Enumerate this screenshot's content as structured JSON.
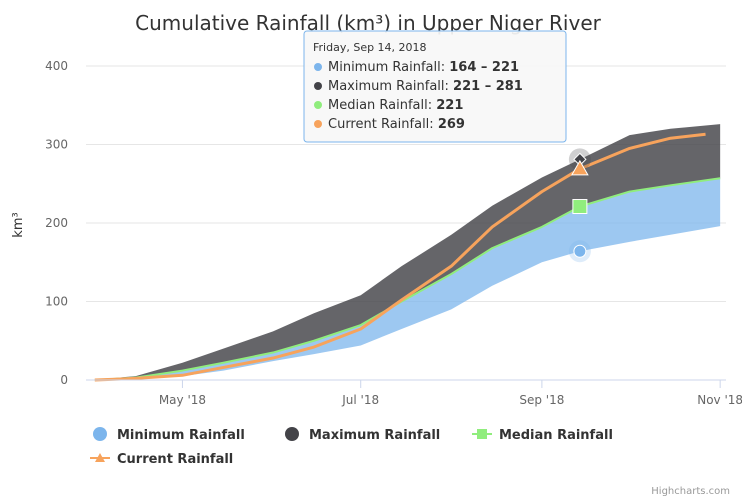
{
  "chart_data": {
    "type": "area",
    "title": "Cumulative Rainfall (km³) in Upper Niger River",
    "ylabel": "km³",
    "ylim": [
      0,
      400
    ],
    "yticks": [
      "0",
      "100",
      "200",
      "300",
      "400"
    ],
    "xlim": [
      "2018-03-29",
      "2018-11-03"
    ],
    "xticks": [
      {
        "date": "2018-05-01",
        "label": "May '18"
      },
      {
        "date": "2018-07-01",
        "label": "Jul '18"
      },
      {
        "date": "2018-09-01",
        "label": "Sep '18"
      },
      {
        "date": "2018-11-01",
        "label": "Nov '18"
      }
    ],
    "grid": true,
    "legend": "bottom-left",
    "series": [
      {
        "name": "Minimum Rainfall",
        "kind": "range",
        "color": "#7cb5ec",
        "x": [
          "2018-04-01",
          "2018-04-15",
          "2018-05-01",
          "2018-05-15",
          "2018-06-01",
          "2018-06-15",
          "2018-07-01",
          "2018-07-15",
          "2018-08-01",
          "2018-08-15",
          "2018-09-01",
          "2018-09-14",
          "2018-10-01",
          "2018-10-15",
          "2018-11-01"
        ],
        "low": [
          0,
          2,
          5,
          12,
          24,
          33,
          44,
          65,
          90,
          120,
          150,
          164,
          176,
          185,
          196
        ],
        "high": [
          0,
          3,
          12,
          22,
          35,
          50,
          70,
          100,
          135,
          168,
          195,
          221,
          240,
          248,
          257
        ]
      },
      {
        "name": "Maximum Rainfall",
        "kind": "range",
        "color": "#434348",
        "x": [
          "2018-04-01",
          "2018-04-15",
          "2018-05-01",
          "2018-05-15",
          "2018-06-01",
          "2018-06-15",
          "2018-07-01",
          "2018-07-15",
          "2018-08-01",
          "2018-08-15",
          "2018-09-01",
          "2018-09-14",
          "2018-10-01",
          "2018-10-15",
          "2018-11-01"
        ],
        "low": [
          0,
          3,
          12,
          22,
          35,
          50,
          70,
          100,
          135,
          168,
          195,
          221,
          240,
          248,
          257
        ],
        "high": [
          0,
          5,
          22,
          40,
          62,
          85,
          108,
          145,
          185,
          222,
          258,
          281,
          312,
          320,
          326
        ]
      },
      {
        "name": "Median Rainfall",
        "kind": "line",
        "color": "#90ed7d",
        "x": [
          "2018-04-01",
          "2018-04-15",
          "2018-05-01",
          "2018-05-15",
          "2018-06-01",
          "2018-06-15",
          "2018-07-01",
          "2018-07-15",
          "2018-08-01",
          "2018-08-15",
          "2018-09-01",
          "2018-09-14",
          "2018-10-01",
          "2018-10-15",
          "2018-11-01"
        ],
        "values": [
          0,
          3,
          12,
          22,
          35,
          50,
          70,
          100,
          135,
          168,
          195,
          221,
          240,
          248,
          257
        ]
      },
      {
        "name": "Current Rainfall",
        "kind": "line",
        "color": "#f7a35c",
        "x": [
          "2018-04-01",
          "2018-04-15",
          "2018-05-01",
          "2018-05-15",
          "2018-06-01",
          "2018-06-15",
          "2018-07-01",
          "2018-07-15",
          "2018-08-01",
          "2018-08-15",
          "2018-09-01",
          "2018-09-14",
          "2018-10-01",
          "2018-10-15",
          "2018-10-27"
        ],
        "values": [
          0,
          2,
          6,
          16,
          28,
          42,
          65,
          102,
          145,
          195,
          240,
          269,
          295,
          308,
          313
        ]
      }
    ],
    "tooltip": {
      "header": "Friday, Sep 14, 2018",
      "date": "2018-09-14",
      "rows": [
        {
          "label": "Minimum Rainfall: ",
          "value": "164 – 221",
          "color": "#7cb5ec"
        },
        {
          "label": "Maximum Rainfall: ",
          "value": "221 – 281",
          "color": "#434348"
        },
        {
          "label": "Median Rainfall: ",
          "value": "221",
          "color": "#90ed7d"
        },
        {
          "label": "Current Rainfall: ",
          "value": "269",
          "color": "#f7a35c"
        }
      ]
    },
    "credits": "Highcharts.com"
  }
}
